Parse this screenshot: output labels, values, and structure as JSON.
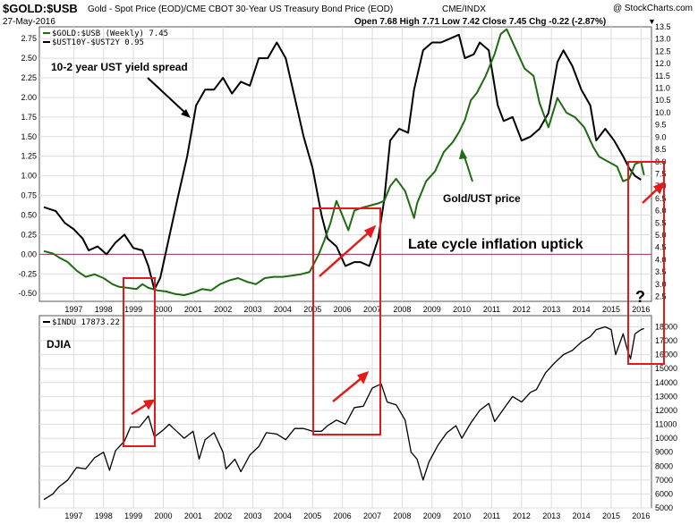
{
  "header": {
    "symbol": "$GOLD:$USB",
    "description": "Gold - Spot Price (EOD)/CME CBOT 30-Year US Treasury Bond Price (EOD)",
    "exchange": "CME/INDX",
    "brand": "@ StockCharts.com",
    "date": "27-May-2016",
    "ohlc": "Open 7.68  High 7.71  Low 7.42  Close 7.45  Chg -0.22 (-2.87%)",
    "chg_marker": "▼"
  },
  "colors": {
    "gold": "#1f6b12",
    "spread": "#000000",
    "djia": "#000000",
    "annotation": "#e41a1a",
    "zero_line": "#a0306a",
    "grid": "#dcdcdc"
  },
  "chart_data": [
    {
      "type": "line",
      "panel": "top",
      "legend": {
        "gold": "$GOLD:$USB (Weekly) 7.45",
        "spread": "$UST10Y-$UST2Y 0.95"
      },
      "series": [
        {
          "name": "$GOLD:$USB (Weekly)",
          "axis": "right",
          "points": [
            [
              1996.5,
              4.35
            ],
            [
              1996.8,
              4.25
            ],
            [
              1997.0,
              4.1
            ],
            [
              1997.3,
              3.9
            ],
            [
              1997.6,
              3.55
            ],
            [
              1997.9,
              3.3
            ],
            [
              1998.2,
              3.4
            ],
            [
              1998.5,
              3.25
            ],
            [
              1998.8,
              3.0
            ],
            [
              1999.0,
              2.9
            ],
            [
              1999.3,
              2.85
            ],
            [
              1999.6,
              2.8
            ],
            [
              1999.8,
              3.0
            ],
            [
              2000.0,
              2.85
            ],
            [
              2000.3,
              2.75
            ],
            [
              2000.6,
              2.7
            ],
            [
              2000.9,
              2.6
            ],
            [
              2001.2,
              2.55
            ],
            [
              2001.5,
              2.65
            ],
            [
              2001.8,
              2.8
            ],
            [
              2002.1,
              2.75
            ],
            [
              2002.4,
              3.0
            ],
            [
              2002.7,
              3.15
            ],
            [
              2003.0,
              3.25
            ],
            [
              2003.3,
              3.1
            ],
            [
              2003.6,
              3.0
            ],
            [
              2003.9,
              3.25
            ],
            [
              2004.2,
              3.3
            ],
            [
              2004.5,
              3.3
            ],
            [
              2004.8,
              3.35
            ],
            [
              2005.1,
              3.4
            ],
            [
              2005.4,
              3.5
            ],
            [
              2005.7,
              4.2
            ],
            [
              2005.9,
              4.8
            ],
            [
              2006.1,
              5.5
            ],
            [
              2006.3,
              6.4
            ],
            [
              2006.5,
              5.8
            ],
            [
              2006.7,
              5.2
            ],
            [
              2006.9,
              6.0
            ],
            [
              2007.1,
              6.1
            ],
            [
              2007.4,
              6.2
            ],
            [
              2007.7,
              6.3
            ],
            [
              2007.9,
              6.4
            ],
            [
              2008.1,
              7.0
            ],
            [
              2008.3,
              7.3
            ],
            [
              2008.6,
              6.8
            ],
            [
              2008.9,
              5.7
            ],
            [
              2009.0,
              6.3
            ],
            [
              2009.3,
              7.2
            ],
            [
              2009.6,
              7.6
            ],
            [
              2009.9,
              8.4
            ],
            [
              2010.2,
              8.8
            ],
            [
              2010.4,
              9.2
            ],
            [
              2010.6,
              9.7
            ],
            [
              2010.8,
              10.5
            ],
            [
              2011.0,
              10.8
            ],
            [
              2011.3,
              11.5
            ],
            [
              2011.6,
              12.4
            ],
            [
              2011.8,
              13.2
            ],
            [
              2012.0,
              13.4
            ],
            [
              2012.3,
              12.6
            ],
            [
              2012.6,
              11.8
            ],
            [
              2012.9,
              11.5
            ],
            [
              2013.1,
              10.4
            ],
            [
              2013.4,
              9.4
            ],
            [
              2013.7,
              10.6
            ],
            [
              2014.0,
              10.0
            ],
            [
              2014.3,
              9.8
            ],
            [
              2014.6,
              9.4
            ],
            [
              2014.9,
              8.6
            ],
            [
              2015.1,
              8.2
            ],
            [
              2015.4,
              8.0
            ],
            [
              2015.7,
              7.8
            ],
            [
              2015.9,
              7.2
            ],
            [
              2016.1,
              7.3
            ],
            [
              2016.3,
              7.9
            ],
            [
              2016.5,
              8.0
            ],
            [
              2016.6,
              7.45
            ]
          ]
        },
        {
          "name": "$UST10Y-$UST2Y",
          "axis": "left",
          "points": [
            [
              1996.5,
              0.6
            ],
            [
              1996.9,
              0.55
            ],
            [
              1997.2,
              0.4
            ],
            [
              1997.5,
              0.32
            ],
            [
              1997.8,
              0.2
            ],
            [
              1998.0,
              0.05
            ],
            [
              1998.3,
              0.1
            ],
            [
              1998.6,
              0.0
            ],
            [
              1998.9,
              0.15
            ],
            [
              1999.2,
              0.25
            ],
            [
              1999.5,
              0.08
            ],
            [
              1999.8,
              0.05
            ],
            [
              2000.0,
              -0.15
            ],
            [
              2000.2,
              -0.45
            ],
            [
              2000.4,
              -0.3
            ],
            [
              2000.6,
              0.05
            ],
            [
              2000.8,
              0.4
            ],
            [
              2001.0,
              0.75
            ],
            [
              2001.3,
              1.25
            ],
            [
              2001.6,
              1.9
            ],
            [
              2001.9,
              2.1
            ],
            [
              2002.2,
              2.1
            ],
            [
              2002.5,
              2.25
            ],
            [
              2002.8,
              2.05
            ],
            [
              2003.1,
              2.2
            ],
            [
              2003.4,
              2.15
            ],
            [
              2003.7,
              2.5
            ],
            [
              2004.0,
              2.5
            ],
            [
              2004.3,
              2.7
            ],
            [
              2004.6,
              2.5
            ],
            [
              2004.9,
              2.0
            ],
            [
              2005.2,
              1.5
            ],
            [
              2005.5,
              1.1
            ],
            [
              2005.8,
              0.5
            ],
            [
              2006.0,
              0.2
            ],
            [
              2006.3,
              0.1
            ],
            [
              2006.6,
              -0.15
            ],
            [
              2006.9,
              -0.1
            ],
            [
              2007.1,
              -0.1
            ],
            [
              2007.4,
              -0.15
            ],
            [
              2007.7,
              0.2
            ],
            [
              2007.9,
              0.7
            ],
            [
              2008.1,
              1.45
            ],
            [
              2008.4,
              1.6
            ],
            [
              2008.7,
              1.55
            ],
            [
              2008.9,
              2.1
            ],
            [
              2009.2,
              2.6
            ],
            [
              2009.5,
              2.7
            ],
            [
              2009.8,
              2.7
            ],
            [
              2010.1,
              2.75
            ],
            [
              2010.4,
              2.8
            ],
            [
              2010.6,
              2.5
            ],
            [
              2010.9,
              2.55
            ],
            [
              2011.1,
              2.7
            ],
            [
              2011.4,
              2.6
            ],
            [
              2011.7,
              1.9
            ],
            [
              2011.9,
              1.7
            ],
            [
              2012.2,
              1.75
            ],
            [
              2012.5,
              1.45
            ],
            [
              2012.8,
              1.5
            ],
            [
              2013.1,
              1.6
            ],
            [
              2013.4,
              1.8
            ],
            [
              2013.7,
              2.45
            ],
            [
              2013.9,
              2.6
            ],
            [
              2014.2,
              2.4
            ],
            [
              2014.5,
              2.1
            ],
            [
              2014.8,
              1.9
            ],
            [
              2015.0,
              1.45
            ],
            [
              2015.3,
              1.6
            ],
            [
              2015.6,
              1.45
            ],
            [
              2015.9,
              1.25
            ],
            [
              2016.1,
              1.1
            ],
            [
              2016.3,
              1.0
            ],
            [
              2016.5,
              0.95
            ]
          ]
        }
      ],
      "left_ylim": [
        -0.6,
        2.9
      ],
      "left_ticks": [
        "2.75",
        "2.50",
        "2.25",
        "2.00",
        "1.75",
        "1.50",
        "1.25",
        "1.00",
        "0.75",
        "0.50",
        "0.25",
        "0.00",
        "-0.25",
        "-0.50"
      ],
      "right_ylim": [
        2.3,
        13.5
      ],
      "right_ticks": [
        "13.5",
        "13.0",
        "12.5",
        "12.0",
        "11.5",
        "11.0",
        "10.5",
        "10.0",
        "9.5",
        "9.0",
        "8.5",
        "8.0",
        "7.5",
        "7.0",
        "6.5",
        "6.0",
        "5.5",
        "5.0",
        "4.5",
        "4.0",
        "3.5",
        "3.0",
        "2.5"
      ],
      "xlim": [
        1996.35,
        2016.85
      ],
      "x_ticks": [
        "1997",
        "1998",
        "1999",
        "2000",
        "2001",
        "2002",
        "2003",
        "2004",
        "2005",
        "2006",
        "2007",
        "2008",
        "2009",
        "2010",
        "2011",
        "2012",
        "2013",
        "2014",
        "2015",
        "2016"
      ],
      "zero_line": 0,
      "grid": true,
      "legend_position": "top-left",
      "annotations": {
        "spread_label": "10-2 year UST yield spread",
        "gold_label": "Gold/UST price",
        "inflation_label": "Late cycle inflation uptick",
        "question": "?"
      }
    },
    {
      "type": "line",
      "panel": "bottom",
      "legend": "$INDU 17873.22",
      "panel_label": "DJIA",
      "series": [
        {
          "name": "$INDU",
          "axis": "right",
          "points": [
            [
              1996.5,
              5600
            ],
            [
              1996.8,
              6000
            ],
            [
              1997.0,
              6500
            ],
            [
              1997.3,
              7000
            ],
            [
              1997.6,
              7900
            ],
            [
              1997.9,
              7800
            ],
            [
              1998.2,
              8600
            ],
            [
              1998.5,
              9000
            ],
            [
              1998.7,
              7700
            ],
            [
              1998.9,
              9100
            ],
            [
              1999.2,
              9800
            ],
            [
              1999.4,
              10800
            ],
            [
              1999.7,
              10800
            ],
            [
              2000.0,
              11600
            ],
            [
              2000.2,
              10100
            ],
            [
              2000.5,
              10600
            ],
            [
              2000.7,
              11000
            ],
            [
              2000.9,
              10600
            ],
            [
              2001.2,
              10000
            ],
            [
              2001.5,
              10500
            ],
            [
              2001.7,
              8500
            ],
            [
              2001.9,
              9900
            ],
            [
              2002.2,
              10400
            ],
            [
              2002.5,
              9000
            ],
            [
              2002.6,
              7800
            ],
            [
              2002.9,
              8500
            ],
            [
              2003.1,
              7600
            ],
            [
              2003.4,
              8800
            ],
            [
              2003.7,
              9400
            ],
            [
              2003.95,
              10400
            ],
            [
              2004.3,
              10300
            ],
            [
              2004.6,
              9900
            ],
            [
              2004.9,
              10700
            ],
            [
              2005.2,
              10700
            ],
            [
              2005.5,
              10500
            ],
            [
              2005.8,
              10500
            ],
            [
              2006.0,
              10900
            ],
            [
              2006.3,
              11300
            ],
            [
              2006.6,
              11000
            ],
            [
              2006.9,
              12200
            ],
            [
              2007.2,
              12300
            ],
            [
              2007.5,
              13600
            ],
            [
              2007.8,
              13900
            ],
            [
              2008.0,
              12600
            ],
            [
              2008.3,
              12400
            ],
            [
              2008.6,
              11300
            ],
            [
              2008.8,
              9000
            ],
            [
              2009.0,
              8500
            ],
            [
              2009.2,
              7000
            ],
            [
              2009.4,
              8300
            ],
            [
              2009.7,
              9500
            ],
            [
              2010.0,
              10400
            ],
            [
              2010.3,
              10900
            ],
            [
              2010.5,
              10000
            ],
            [
              2010.8,
              11100
            ],
            [
              2011.1,
              12000
            ],
            [
              2011.4,
              12500
            ],
            [
              2011.6,
              11200
            ],
            [
              2011.9,
              12100
            ],
            [
              2012.2,
              13000
            ],
            [
              2012.5,
              12600
            ],
            [
              2012.8,
              13300
            ],
            [
              2013.0,
              13500
            ],
            [
              2013.3,
              14700
            ],
            [
              2013.6,
              15400
            ],
            [
              2013.9,
              16000
            ],
            [
              2014.2,
              16300
            ],
            [
              2014.5,
              16900
            ],
            [
              2014.8,
              17300
            ],
            [
              2015.0,
              17800
            ],
            [
              2015.3,
              18000
            ],
            [
              2015.5,
              17800
            ],
            [
              2015.65,
              16000
            ],
            [
              2015.9,
              17500
            ],
            [
              2016.05,
              16300
            ],
            [
              2016.15,
              15700
            ],
            [
              2016.3,
              17500
            ],
            [
              2016.5,
              17800
            ],
            [
              2016.6,
              17873
            ]
          ]
        }
      ],
      "ylim": [
        5000,
        18800
      ],
      "y_ticks": [
        "18000",
        "17000",
        "16000",
        "15000",
        "14000",
        "13000",
        "12000",
        "11000",
        "10000",
        "9000",
        "8000",
        "7000",
        "6000",
        "5000"
      ],
      "xlim": [
        1996.35,
        2016.85
      ],
      "x_ticks": [
        "1997",
        "1998",
        "1999",
        "2000",
        "2001",
        "2002",
        "2003",
        "2004",
        "2005",
        "2006",
        "2007",
        "2008",
        "2009",
        "2010",
        "2011",
        "2012",
        "2013",
        "2014",
        "2015",
        "2016"
      ],
      "grid": true,
      "legend_position": "top-left"
    }
  ]
}
